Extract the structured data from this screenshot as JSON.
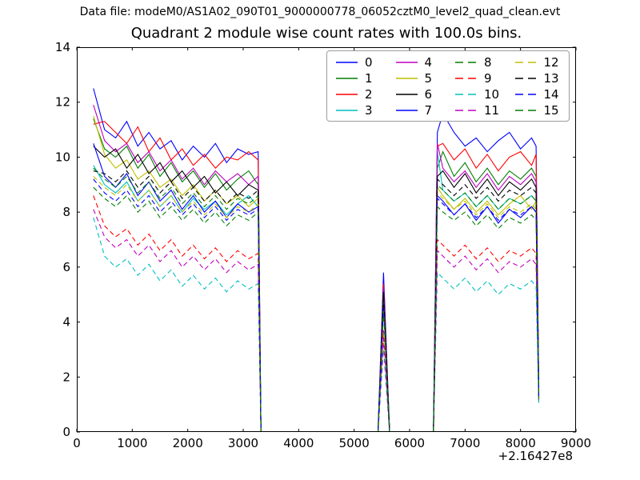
{
  "figure": {
    "header": "Data file: modeM0/AS1A02_090T01_9000000778_06052cztM0_level2_quad_clean.evt",
    "title": "Quadrant 2 module wise count rates with 100.0s bins."
  },
  "axes": {
    "offset_text": "+2.16427e8",
    "frame_color": "#000000",
    "xtick_labels": [
      "0",
      "1000",
      "2000",
      "3000",
      "4000",
      "5000",
      "6000",
      "7000",
      "8000",
      "9000"
    ],
    "ytick_labels": [
      "0",
      "2",
      "4",
      "6",
      "8",
      "10",
      "12",
      "14"
    ]
  },
  "chart_data": {
    "type": "line",
    "title": "Quadrant 2 module wise count rates with 100.0s bins.",
    "xlabel": "",
    "ylabel": "",
    "xlim": [
      0,
      9000
    ],
    "ylim": [
      0,
      14
    ],
    "xticks": [
      0,
      1000,
      2000,
      3000,
      4000,
      5000,
      6000,
      7000,
      8000,
      9000
    ],
    "yticks": [
      0,
      2,
      4,
      6,
      8,
      10,
      12,
      14
    ],
    "x_axis_offset": "+2.16427e8",
    "grid": false,
    "legend_position": "upper center",
    "legend_columns": 4,
    "x": [
      300,
      500,
      700,
      900,
      1100,
      1300,
      1500,
      1700,
      1900,
      2100,
      2300,
      2500,
      2700,
      2900,
      3100,
      3270,
      3320,
      5430,
      5530,
      5640,
      6430,
      6500,
      6600,
      6800,
      7000,
      7200,
      7400,
      7600,
      7800,
      8000,
      8200,
      8280,
      8330
    ],
    "series": [
      {
        "name": "0",
        "color": "#0000ff",
        "linestyle": "solid",
        "y": [
          12.5,
          11.0,
          10.7,
          11.3,
          10.4,
          10.9,
          10.3,
          10.6,
          9.9,
          10.4,
          10.0,
          10.5,
          9.8,
          10.3,
          10.1,
          10.2,
          0,
          0,
          5.8,
          0,
          0,
          10.9,
          11.6,
          10.9,
          10.4,
          10.7,
          10.2,
          10.6,
          10.9,
          10.3,
          10.7,
          10.4,
          1.5
        ]
      },
      {
        "name": "1",
        "color": "#007f00",
        "linestyle": "solid",
        "y": [
          11.4,
          10.3,
          10.0,
          10.4,
          9.6,
          10.1,
          9.3,
          9.8,
          9.1,
          9.5,
          8.9,
          9.4,
          8.8,
          9.2,
          9.5,
          9.0,
          0,
          0,
          5.0,
          0,
          0,
          9.6,
          10.2,
          9.3,
          9.8,
          9.1,
          9.6,
          9.0,
          9.5,
          9.2,
          9.6,
          9.3,
          1.3
        ]
      },
      {
        "name": "2",
        "color": "#ff0000",
        "linestyle": "solid",
        "y": [
          11.2,
          11.3,
          10.9,
          10.5,
          11.1,
          10.2,
          10.7,
          9.9,
          10.3,
          9.7,
          10.1,
          9.6,
          10.0,
          9.9,
          10.2,
          9.9,
          0,
          0,
          5.4,
          0,
          0,
          10.4,
          10.5,
          9.9,
          10.3,
          9.6,
          10.1,
          9.5,
          10.0,
          10.2,
          9.7,
          10.1,
          1.4
        ]
      },
      {
        "name": "3",
        "color": "#00bfbf",
        "linestyle": "solid",
        "y": [
          9.7,
          9.0,
          8.7,
          9.1,
          8.4,
          8.8,
          8.2,
          8.6,
          8.0,
          8.5,
          8.1,
          8.4,
          7.9,
          8.3,
          8.6,
          8.2,
          0,
          0,
          4.6,
          0,
          0,
          10.2,
          8.8,
          8.4,
          8.7,
          8.2,
          8.6,
          8.1,
          8.5,
          8.3,
          8.6,
          8.4,
          1.2
        ]
      },
      {
        "name": "4",
        "color": "#bf00bf",
        "linestyle": "solid",
        "y": [
          11.9,
          10.6,
          10.2,
          10.5,
          9.8,
          10.2,
          9.5,
          9.9,
          9.2,
          9.6,
          9.0,
          9.5,
          9.1,
          9.4,
          9.0,
          9.3,
          0,
          0,
          5.2,
          0,
          0,
          10.5,
          9.6,
          9.1,
          9.5,
          8.9,
          9.4,
          8.8,
          9.3,
          9.0,
          9.4,
          9.1,
          1.4
        ]
      },
      {
        "name": "5",
        "color": "#bfbf00",
        "linestyle": "solid",
        "y": [
          11.5,
          10.1,
          9.6,
          9.9,
          9.2,
          9.5,
          8.9,
          9.2,
          8.6,
          9.0,
          8.4,
          8.8,
          8.3,
          8.6,
          8.2,
          8.5,
          0,
          0,
          4.8,
          0,
          0,
          8.9,
          8.6,
          8.1,
          8.5,
          8.0,
          8.4,
          7.9,
          8.3,
          8.6,
          8.1,
          8.4,
          1.3
        ]
      },
      {
        "name": "6",
        "color": "#000000",
        "linestyle": "solid",
        "y": [
          10.4,
          10.0,
          10.3,
          9.6,
          10.1,
          9.4,
          9.8,
          9.1,
          9.5,
          8.9,
          9.3,
          8.7,
          9.1,
          8.6,
          9.0,
          8.8,
          0,
          0,
          5.1,
          0,
          0,
          9.3,
          9.5,
          8.9,
          9.4,
          8.7,
          9.2,
          8.6,
          9.1,
          8.8,
          9.2,
          8.9,
          1.4
        ]
      },
      {
        "name": "7",
        "color": "#0000ff",
        "linestyle": "solid",
        "y": [
          10.5,
          9.3,
          8.9,
          9.4,
          8.6,
          9.1,
          8.4,
          8.8,
          8.1,
          8.6,
          8.0,
          8.4,
          7.8,
          8.3,
          8.0,
          8.2,
          0,
          0,
          4.7,
          0,
          0,
          8.6,
          8.4,
          7.9,
          8.3,
          7.7,
          8.2,
          7.6,
          8.1,
          7.8,
          8.2,
          8.0,
          1.2
        ]
      },
      {
        "name": "8",
        "color": "#007f00",
        "linestyle": "dashed",
        "y": [
          9.6,
          9.2,
          8.9,
          9.3,
          8.7,
          9.1,
          8.5,
          8.9,
          8.3,
          8.7,
          8.2,
          8.6,
          8.1,
          8.5,
          8.3,
          8.6,
          0,
          0,
          4.9,
          0,
          0,
          9.0,
          8.8,
          8.4,
          8.7,
          8.2,
          8.6,
          8.1,
          8.5,
          8.3,
          8.6,
          8.4,
          1.3
        ]
      },
      {
        "name": "9",
        "color": "#ff0000",
        "linestyle": "dashed",
        "y": [
          8.6,
          7.5,
          7.1,
          7.4,
          6.8,
          7.2,
          6.6,
          7.0,
          6.4,
          6.8,
          6.3,
          6.7,
          6.2,
          6.6,
          6.3,
          6.5,
          0,
          0,
          3.7,
          0,
          0,
          7.0,
          6.8,
          6.4,
          6.8,
          6.3,
          6.7,
          6.2,
          6.6,
          6.4,
          6.7,
          6.5,
          1.1
        ]
      },
      {
        "name": "10",
        "color": "#00bfbf",
        "linestyle": "dashed",
        "y": [
          7.8,
          6.4,
          6.0,
          6.3,
          5.7,
          6.1,
          5.5,
          5.9,
          5.3,
          5.7,
          5.2,
          5.6,
          5.1,
          5.5,
          5.2,
          5.4,
          0,
          0,
          3.0,
          0,
          0,
          5.8,
          5.6,
          5.2,
          5.6,
          5.1,
          5.5,
          5.0,
          5.4,
          5.2,
          5.5,
          5.3,
          1.0
        ]
      },
      {
        "name": "11",
        "color": "#bf00bf",
        "linestyle": "dashed",
        "y": [
          8.1,
          7.1,
          6.7,
          7.0,
          6.4,
          6.8,
          6.2,
          6.6,
          6.0,
          6.4,
          5.9,
          6.3,
          5.8,
          6.2,
          5.9,
          6.1,
          0,
          0,
          3.4,
          0,
          0,
          6.6,
          6.4,
          6.0,
          6.4,
          5.9,
          6.3,
          5.8,
          6.2,
          6.0,
          6.3,
          6.1,
          1.1
        ]
      },
      {
        "name": "12",
        "color": "#bfbf00",
        "linestyle": "dashed",
        "y": [
          9.3,
          8.9,
          8.6,
          9.0,
          8.4,
          8.8,
          8.2,
          8.6,
          8.0,
          8.4,
          7.9,
          8.3,
          7.8,
          8.2,
          8.0,
          8.3,
          0,
          0,
          4.6,
          0,
          0,
          8.7,
          8.5,
          8.1,
          8.4,
          7.9,
          8.3,
          7.8,
          8.2,
          8.0,
          8.3,
          8.1,
          1.2
        ]
      },
      {
        "name": "13",
        "color": "#000000",
        "linestyle": "dashed",
        "y": [
          9.5,
          9.4,
          9.1,
          9.5,
          8.9,
          9.3,
          8.7,
          9.1,
          8.5,
          8.9,
          8.4,
          8.8,
          8.3,
          8.7,
          8.5,
          8.8,
          0,
          0,
          5.0,
          0,
          0,
          9.2,
          9.0,
          8.6,
          9.0,
          8.5,
          8.9,
          8.4,
          8.8,
          8.6,
          8.9,
          8.7,
          1.3
        ]
      },
      {
        "name": "14",
        "color": "#0000ff",
        "linestyle": "dashed",
        "y": [
          9.2,
          8.7,
          8.4,
          8.8,
          8.2,
          8.6,
          8.0,
          8.4,
          7.9,
          8.3,
          7.8,
          8.2,
          7.7,
          8.1,
          7.9,
          8.1,
          0,
          0,
          4.5,
          0,
          0,
          8.5,
          8.3,
          7.9,
          8.3,
          7.8,
          8.2,
          7.7,
          8.1,
          7.9,
          8.2,
          8.0,
          1.2
        ]
      },
      {
        "name": "15",
        "color": "#007f00",
        "linestyle": "dashed",
        "y": [
          8.9,
          8.5,
          8.2,
          8.6,
          8.0,
          8.4,
          7.8,
          8.2,
          7.7,
          8.1,
          7.6,
          8.0,
          7.5,
          7.9,
          7.7,
          8.0,
          0,
          0,
          4.4,
          0,
          0,
          8.2,
          8.0,
          7.7,
          8.0,
          7.5,
          7.9,
          7.4,
          7.8,
          7.6,
          7.9,
          7.7,
          1.2
        ]
      }
    ]
  }
}
